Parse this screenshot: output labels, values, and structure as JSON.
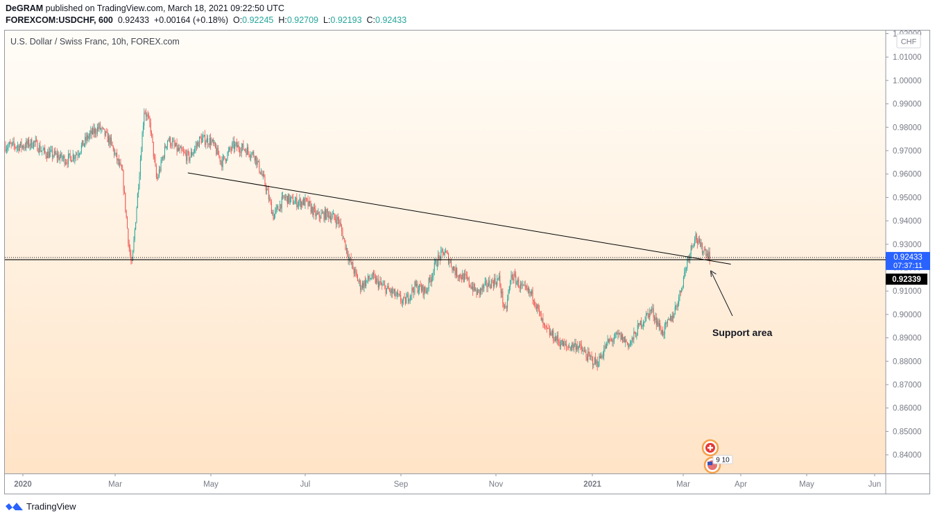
{
  "header": {
    "author": "DeGRAM",
    "published_text": " published on TradingView.com, March 18, 2021 09:22:50 UTC",
    "symbol": "FOREXCOM:USDCHF, 600",
    "last": "0.92433",
    "change": "+0.00164 (+0.18%)",
    "o_label": "O:",
    "o_value": "0.92245",
    "h_label": "H:",
    "h_value": "0.92709",
    "l_label": "L:",
    "l_value": "0.92193",
    "c_label": "C:",
    "c_value": "0.92433"
  },
  "footer": {
    "brand": "TradingView"
  },
  "colors": {
    "up": "#26a69a",
    "down": "#ef5350",
    "bg_top": "#fffdf8",
    "bg_bottom": "#ffe4c7",
    "price_tag": "#2962ff",
    "dark_tag": "#000000"
  },
  "chart_data": {
    "type": "candlestick",
    "title": "U.S. Dollar / Swiss Franc, 10h, FOREX.com",
    "currency": "CHF",
    "y_ticks": [
      "1.02000",
      "1.01000",
      "1.00000",
      "0.99000",
      "0.98000",
      "0.97000",
      "0.96000",
      "0.95000",
      "0.94000",
      "0.93000",
      "0.92000",
      "0.91000",
      "0.90000",
      "0.89000",
      "0.88000",
      "0.87000",
      "0.86000",
      "0.85000",
      "0.84000"
    ],
    "x_ticks": [
      "2020",
      "Mar",
      "May",
      "Jul",
      "Sep",
      "Nov",
      "2021",
      "Mar",
      "Apr",
      "May",
      "Jun"
    ],
    "ylim": [
      0.832,
      1.021
    ],
    "price_axis_side": "right",
    "last_price_label": "0.92433",
    "countdown_label": "07:37:11",
    "horizontal_level_label": "0.92339",
    "horizontal_level": 0.92339,
    "trendline": {
      "start": [
        "2020-04-16",
        0.9605
      ],
      "end": [
        "2021-03-31",
        0.9215
      ]
    },
    "annotation": {
      "text": "Support area",
      "arrow_to": [
        "2021-03-18",
        0.9205
      ]
    },
    "event_badges": [
      "CHF flag",
      "US flag"
    ],
    "event_counts_label": "9 10",
    "price_path": [
      [
        "2020-01-01",
        0.972
      ],
      [
        "2020-01-08",
        0.9735
      ],
      [
        "2020-01-15",
        0.969
      ],
      [
        "2020-01-22",
        0.968
      ],
      [
        "2020-01-29",
        0.966
      ],
      [
        "2020-02-05",
        0.969
      ],
      [
        "2020-02-12",
        0.976
      ],
      [
        "2020-02-19",
        0.98
      ],
      [
        "2020-02-26",
        0.974
      ],
      [
        "2020-03-05",
        0.96
      ],
      [
        "2020-03-09",
        0.93
      ],
      [
        "2020-03-11",
        0.92
      ],
      [
        "2020-03-16",
        0.962
      ],
      [
        "2020-03-19",
        0.988
      ],
      [
        "2020-03-23",
        0.98
      ],
      [
        "2020-03-27",
        0.957
      ],
      [
        "2020-04-03",
        0.975
      ],
      [
        "2020-04-10",
        0.97
      ],
      [
        "2020-04-17",
        0.967
      ],
      [
        "2020-04-24",
        0.975
      ],
      [
        "2020-05-01",
        0.974
      ],
      [
        "2020-05-08",
        0.965
      ],
      [
        "2020-05-15",
        0.972
      ],
      [
        "2020-05-22",
        0.971
      ],
      [
        "2020-05-29",
        0.968
      ],
      [
        "2020-06-05",
        0.955
      ],
      [
        "2020-06-10",
        0.942
      ],
      [
        "2020-06-17",
        0.95
      ],
      [
        "2020-06-24",
        0.948
      ],
      [
        "2020-07-01",
        0.948
      ],
      [
        "2020-07-08",
        0.942
      ],
      [
        "2020-07-15",
        0.943
      ],
      [
        "2020-07-22",
        0.94
      ],
      [
        "2020-07-29",
        0.923
      ],
      [
        "2020-08-05",
        0.912
      ],
      [
        "2020-08-12",
        0.916
      ],
      [
        "2020-08-19",
        0.912
      ],
      [
        "2020-08-26",
        0.909
      ],
      [
        "2020-09-02",
        0.905
      ],
      [
        "2020-09-09",
        0.912
      ],
      [
        "2020-09-16",
        0.91
      ],
      [
        "2020-09-23",
        0.923
      ],
      [
        "2020-09-28",
        0.927
      ],
      [
        "2020-10-05",
        0.918
      ],
      [
        "2020-10-12",
        0.915
      ],
      [
        "2020-10-19",
        0.909
      ],
      [
        "2020-10-26",
        0.913
      ],
      [
        "2020-11-02",
        0.915
      ],
      [
        "2020-11-06",
        0.9
      ],
      [
        "2020-11-10",
        0.917
      ],
      [
        "2020-11-17",
        0.911
      ],
      [
        "2020-11-24",
        0.908
      ],
      [
        "2020-12-01",
        0.894
      ],
      [
        "2020-12-08",
        0.89
      ],
      [
        "2020-12-15",
        0.886
      ],
      [
        "2020-12-22",
        0.887
      ],
      [
        "2020-12-29",
        0.882
      ],
      [
        "2021-01-04",
        0.879
      ],
      [
        "2021-01-11",
        0.888
      ],
      [
        "2021-01-18",
        0.891
      ],
      [
        "2021-01-25",
        0.887
      ],
      [
        "2021-02-01",
        0.896
      ],
      [
        "2021-02-08",
        0.902
      ],
      [
        "2021-02-15",
        0.892
      ],
      [
        "2021-02-22",
        0.9
      ],
      [
        "2021-02-26",
        0.908
      ],
      [
        "2021-03-03",
        0.923
      ],
      [
        "2021-03-08",
        0.934
      ],
      [
        "2021-03-11",
        0.929
      ],
      [
        "2021-03-15",
        0.927
      ],
      [
        "2021-03-18",
        0.9243
      ]
    ]
  }
}
